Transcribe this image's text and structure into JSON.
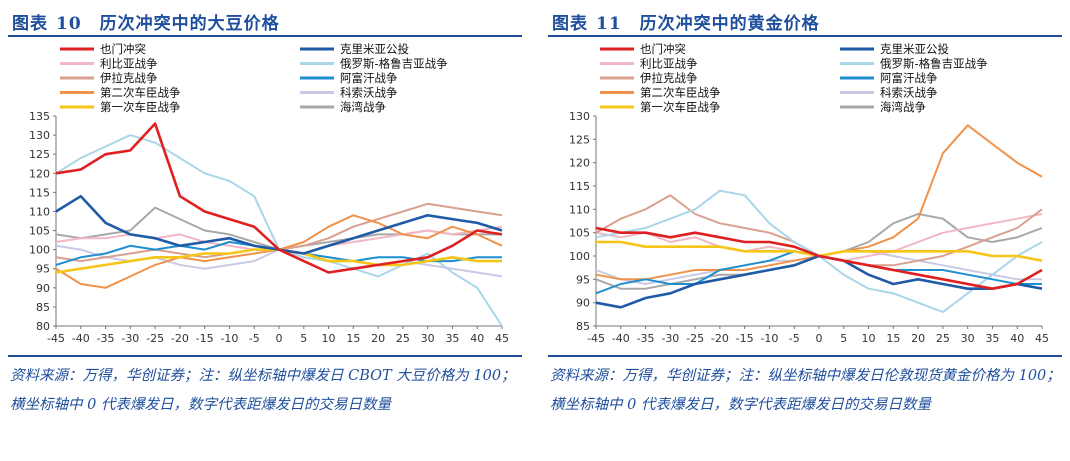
{
  "colors": {
    "yemen": "#e02020",
    "libya": "#f2b7c4",
    "iraq": "#d9a08f",
    "chechen2": "#f0924a",
    "chechen1": "#f5c518",
    "crimea": "#1f5aa6",
    "georgia": "#a9d6e8",
    "afghan": "#1e8fcf",
    "kosovo": "#c9c9e6",
    "gulf": "#a8a8a8",
    "title": "#1f4e9c"
  },
  "chart_data": [
    {
      "type": "line",
      "title_label": "图表",
      "title_num": "10",
      "title": "历次冲突中的大豆价格",
      "ylim": [
        80,
        135
      ],
      "yticks": [
        80,
        85,
        90,
        95,
        100,
        105,
        110,
        115,
        120,
        125,
        130,
        135
      ],
      "xlim": [
        -45,
        45
      ],
      "xticks": [
        -45,
        -40,
        -35,
        -30,
        -25,
        -20,
        -15,
        -10,
        -5,
        0,
        5,
        10,
        15,
        20,
        25,
        30,
        35,
        40,
        45
      ],
      "x": [
        -45,
        -40,
        -35,
        -30,
        -25,
        -20,
        -15,
        -10,
        -5,
        0,
        5,
        10,
        15,
        20,
        25,
        30,
        35,
        40,
        45
      ],
      "series": [
        {
          "key": "yemen",
          "name": "也门冲突",
          "values": [
            120,
            121,
            125,
            126,
            133,
            114,
            110,
            108,
            106,
            100,
            97,
            94,
            95,
            96,
            97,
            98,
            101,
            105,
            104
          ]
        },
        {
          "key": "libya",
          "name": "利比亚战争",
          "values": [
            102,
            103,
            103,
            104,
            103,
            104,
            102,
            101,
            100,
            100,
            99,
            101,
            102,
            103,
            104,
            105,
            104,
            105,
            106
          ]
        },
        {
          "key": "iraq",
          "name": "伊拉克战争",
          "values": [
            98,
            97,
            98,
            99,
            100,
            99,
            98,
            99,
            100,
            100,
            101,
            103,
            106,
            108,
            110,
            112,
            111,
            110,
            109
          ]
        },
        {
          "key": "chechen2",
          "name": "第二次车臣战争",
          "values": [
            95,
            91,
            90,
            93,
            96,
            98,
            97,
            98,
            99,
            100,
            102,
            106,
            109,
            107,
            104,
            103,
            106,
            104,
            101
          ]
        },
        {
          "key": "chechen1",
          "name": "第一次车臣战争",
          "values": [
            94,
            95,
            96,
            97,
            98,
            98,
            99,
            99,
            100,
            100,
            99,
            97,
            97,
            96,
            96,
            97,
            98,
            97,
            97
          ]
        },
        {
          "key": "crimea",
          "name": "克里米亚公投",
          "values": [
            110,
            114,
            107,
            104,
            103,
            101,
            102,
            103,
            101,
            100,
            99,
            101,
            103,
            105,
            107,
            109,
            108,
            107,
            105
          ]
        },
        {
          "key": "georgia",
          "name": "俄罗斯-格鲁吉亚战争",
          "values": [
            120,
            124,
            127,
            130,
            128,
            124,
            120,
            118,
            114,
            100,
            98,
            97,
            95,
            93,
            96,
            99,
            94,
            90,
            80
          ]
        },
        {
          "key": "afghan",
          "name": "阿富汗战争",
          "values": [
            96,
            98,
            99,
            101,
            100,
            101,
            100,
            102,
            101,
            100,
            99,
            98,
            97,
            98,
            98,
            97,
            97,
            98,
            98
          ]
        },
        {
          "key": "kosovo",
          "name": "科索沃战争",
          "values": [
            101,
            100,
            98,
            97,
            98,
            96,
            95,
            96,
            97,
            100,
            99,
            98,
            97,
            96,
            97,
            96,
            95,
            94,
            93
          ]
        },
        {
          "key": "gulf",
          "name": "海湾战争",
          "values": [
            104,
            103,
            104,
            105,
            111,
            108,
            105,
            104,
            102,
            100,
            101,
            102,
            103,
            104,
            104,
            105,
            104,
            104,
            104
          ]
        }
      ],
      "legend": "top, two columns",
      "source": "资料来源：万得，华创证券；注：纵坐标轴中爆发日 CBOT 大豆价格为 100；横坐标轴中 0 代表爆发日，数字代表距爆发日的交易日数量"
    },
    {
      "type": "line",
      "title_label": "图表",
      "title_num": "11",
      "title": "历次冲突中的黄金价格",
      "ylim": [
        85,
        130
      ],
      "yticks": [
        85,
        90,
        95,
        100,
        105,
        110,
        115,
        120,
        125,
        130
      ],
      "xlim": [
        -45,
        45
      ],
      "xticks": [
        -45,
        -40,
        -35,
        -30,
        -25,
        -20,
        -15,
        -10,
        -5,
        0,
        5,
        10,
        15,
        20,
        25,
        30,
        35,
        40,
        45
      ],
      "x": [
        -45,
        -40,
        -35,
        -30,
        -25,
        -20,
        -15,
        -10,
        -5,
        0,
        5,
        10,
        15,
        20,
        25,
        30,
        35,
        40,
        45
      ],
      "series": [
        {
          "key": "yemen",
          "name": "也门冲突",
          "values": [
            106,
            105,
            105,
            104,
            105,
            104,
            103,
            103,
            102,
            100,
            99,
            98,
            97,
            96,
            95,
            94,
            93,
            94,
            97
          ]
        },
        {
          "key": "libya",
          "name": "利比亚战争",
          "values": [
            105,
            104,
            105,
            103,
            104,
            102,
            101,
            102,
            101,
            100,
            99,
            100,
            101,
            103,
            105,
            106,
            107,
            108,
            109
          ]
        },
        {
          "key": "iraq",
          "name": "伊拉克战争",
          "values": [
            105,
            108,
            110,
            113,
            109,
            107,
            106,
            105,
            103,
            100,
            99,
            98,
            98,
            99,
            100,
            102,
            104,
            106,
            110
          ]
        },
        {
          "key": "chechen2",
          "name": "第二次车臣战争",
          "values": [
            96,
            95,
            95,
            96,
            97,
            97,
            97,
            98,
            99,
            100,
            101,
            102,
            104,
            108,
            122,
            128,
            124,
            120,
            117
          ]
        },
        {
          "key": "chechen1",
          "name": "第一次车臣战争",
          "values": [
            103,
            103,
            102,
            102,
            102,
            102,
            101,
            101,
            101,
            100,
            101,
            101,
            101,
            101,
            101,
            101,
            100,
            100,
            99
          ]
        },
        {
          "key": "crimea",
          "name": "克里米亚公投",
          "values": [
            90,
            89,
            91,
            92,
            94,
            95,
            96,
            97,
            98,
            100,
            99,
            96,
            94,
            95,
            94,
            93,
            93,
            94,
            93
          ]
        },
        {
          "key": "georgia",
          "name": "俄罗斯-格鲁吉亚战争",
          "values": [
            104,
            105,
            106,
            108,
            110,
            114,
            113,
            107,
            103,
            100,
            96,
            93,
            92,
            90,
            88,
            92,
            96,
            100,
            103
          ]
        },
        {
          "key": "afghan",
          "name": "阿富汗战争",
          "values": [
            92,
            94,
            95,
            94,
            94,
            97,
            98,
            99,
            101,
            100,
            99,
            98,
            97,
            97,
            97,
            96,
            95,
            94,
            94
          ]
        },
        {
          "key": "kosovo",
          "name": "科索沃战争",
          "values": [
            97,
            95,
            94,
            95,
            96,
            97,
            98,
            99,
            99,
            100,
            101,
            101,
            100,
            99,
            98,
            97,
            96,
            95,
            95
          ]
        },
        {
          "key": "gulf",
          "name": "海湾战争",
          "values": [
            95,
            93,
            93,
            94,
            95,
            96,
            96,
            97,
            98,
            100,
            101,
            103,
            107,
            109,
            108,
            104,
            103,
            104,
            106
          ]
        }
      ],
      "legend": "top, two columns",
      "source": "资料来源：万得，华创证券；注：纵坐标轴中爆发日伦敦现货黄金价格为 100；横坐标轴中 0 代表爆发日，数字代表距爆发日的交易日数量"
    }
  ]
}
